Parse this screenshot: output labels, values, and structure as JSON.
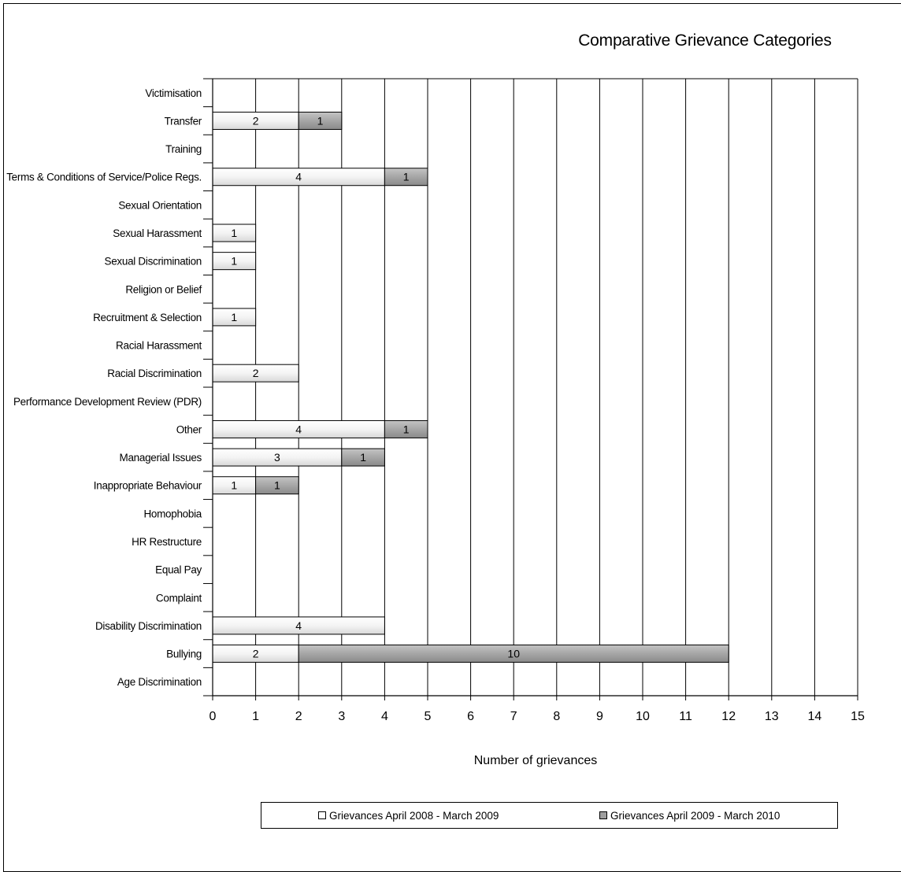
{
  "chart_data": {
    "type": "bar",
    "orientation": "horizontal",
    "stacked": true,
    "title": "Comparative Grievance Categories",
    "xlabel": "Number of grievances",
    "ylabel": "",
    "xlim": [
      0,
      15
    ],
    "xticks": [
      0,
      1,
      2,
      3,
      4,
      5,
      6,
      7,
      8,
      9,
      10,
      11,
      12,
      13,
      14,
      15
    ],
    "grid": "vertical",
    "legend_position": "bottom",
    "categories": [
      "Victimisation",
      "Transfer",
      "Training",
      "Terms & Conditions of Service/Police Regs.",
      "Sexual Orientation",
      "Sexual Harassment",
      "Sexual Discrimination",
      "Religion or Belief",
      "Recruitment & Selection",
      "Racial Harassment",
      "Racial Discrimination",
      "Performance Development Review  (PDR)",
      "Other",
      "Managerial Issues",
      "Inappropriate Behaviour",
      "Homophobia",
      "HR Restructure",
      "Equal Pay",
      "Complaint",
      "Disability Discrimination",
      "Bullying",
      "Age Discrimination"
    ],
    "series": [
      {
        "name": "Grievances April 2008 - March 2009",
        "color": "#ececec",
        "values": [
          0,
          2,
          0,
          4,
          0,
          1,
          1,
          0,
          1,
          0,
          2,
          0,
          4,
          3,
          1,
          0,
          0,
          0,
          0,
          4,
          2,
          0
        ]
      },
      {
        "name": "Grievances April 2009 - March 2010",
        "color": "#9e9e9e",
        "values": [
          0,
          1,
          0,
          1,
          0,
          0,
          0,
          0,
          0,
          0,
          0,
          0,
          1,
          1,
          1,
          0,
          0,
          0,
          0,
          0,
          10,
          0
        ]
      }
    ]
  }
}
